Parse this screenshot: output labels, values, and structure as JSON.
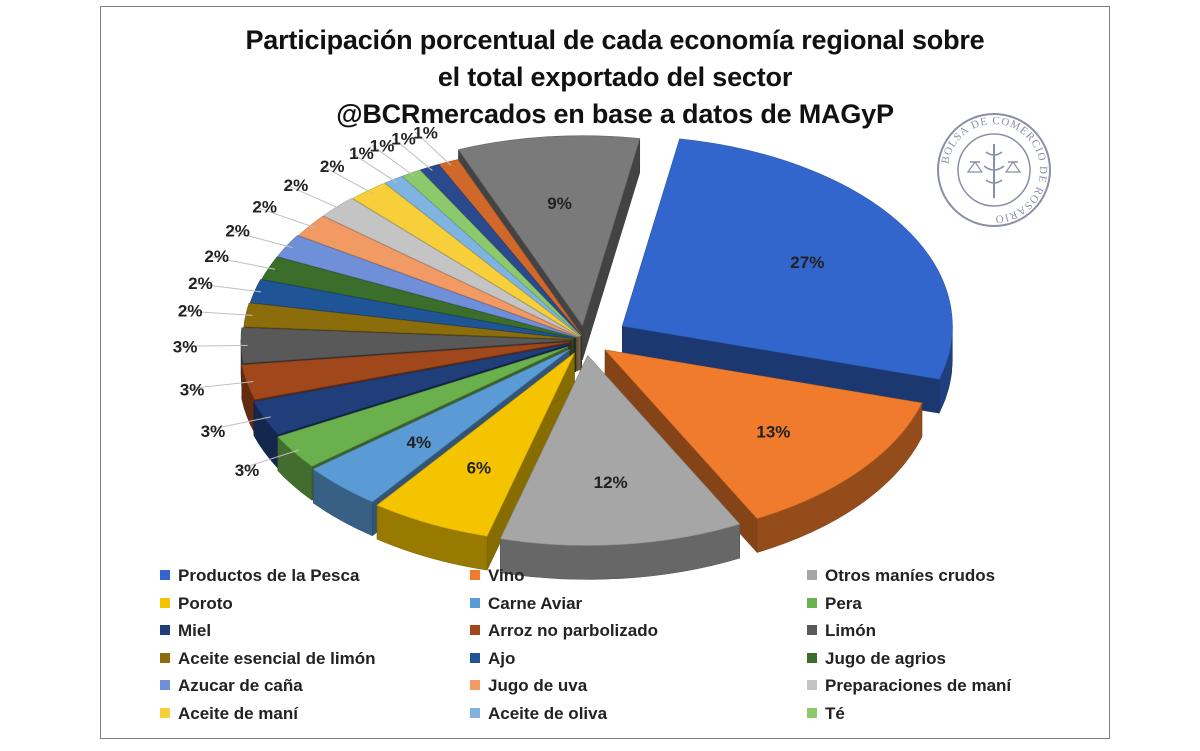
{
  "title_lines": [
    "Participación porcentual de cada economía regional sobre",
    "el total exportado del sector",
    "@BCRmercados  en base a datos de MAGyP"
  ],
  "seal_text": "BOLSA DE COMERCIO DE ROSARIO",
  "chart_data": {
    "type": "pie",
    "title": "Participación porcentual de cada economía regional sobre el total exportado del sector",
    "subtitle": "@BCRmercados  en base a datos de MAGyP",
    "legend_position": "bottom",
    "unit": "%",
    "labels": [
      "27%",
      "13%",
      "12%",
      "6%",
      "4%",
      "3%",
      "3%",
      "3%",
      "3%",
      "2%",
      "2%",
      "2%",
      "2%",
      "2%",
      "2%",
      "2%",
      "1%",
      "1%",
      "1%",
      "1%",
      "9%"
    ],
    "slices": [
      {
        "name": "Productos de la Pesca",
        "value": 27,
        "color": "#3366cc"
      },
      {
        "name": "Vino",
        "value": 13,
        "color": "#f07b2c"
      },
      {
        "name": "Otros maníes crudos",
        "value": 12,
        "color": "#a6a6a6"
      },
      {
        "name": "Poroto",
        "value": 6,
        "color": "#f5c400"
      },
      {
        "name": "Carne Aviar",
        "value": 4,
        "color": "#5b9bd5"
      },
      {
        "name": "Pera",
        "value": 3,
        "color": "#6ab04c"
      },
      {
        "name": "Miel",
        "value": 3,
        "color": "#203f7a"
      },
      {
        "name": "Arroz no parbolizado",
        "value": 3,
        "color": "#a0471c"
      },
      {
        "name": "Limón",
        "value": 3,
        "color": "#595959"
      },
      {
        "name": "Aceite esencial de limón",
        "value": 2,
        "color": "#8c6d0c"
      },
      {
        "name": "Ajo",
        "value": 2,
        "color": "#1f5596"
      },
      {
        "name": "Jugo de agrios",
        "value": 2,
        "color": "#3c6e2b"
      },
      {
        "name": "Azucar de caña",
        "value": 2,
        "color": "#6f8fd8"
      },
      {
        "name": "Jugo de uva",
        "value": 2,
        "color": "#f29a63"
      },
      {
        "name": "Preparaciones de maní",
        "value": 2,
        "color": "#c4c4c4"
      },
      {
        "name": "Aceite de maní",
        "value": 2,
        "color": "#f7cf3b"
      },
      {
        "name": "Aceite de oliva",
        "value": 1,
        "color": "#7fb3e0"
      },
      {
        "name": "Té",
        "value": 1,
        "color": "#8bc96a"
      },
      {
        "name": "",
        "value": 1,
        "color": "#2b4a8e"
      },
      {
        "name": "",
        "value": 1,
        "color": "#d0682a"
      },
      {
        "name": "",
        "value": 9,
        "color": "#7a7a7a"
      }
    ]
  }
}
